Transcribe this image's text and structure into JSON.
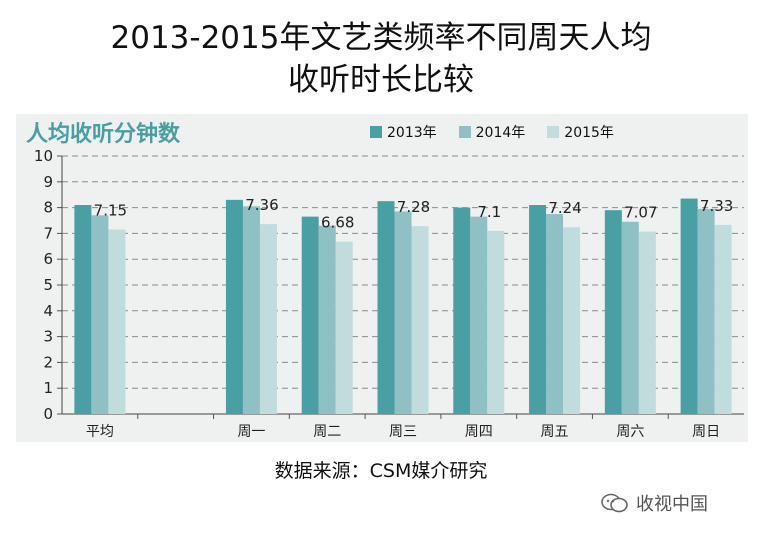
{
  "title_line1": "2013-2015年文艺类频率不同周天人均",
  "title_line2": "收听时长比较",
  "subtitle": "人均收听分钟数",
  "source": "数据来源：CSM媒介研究",
  "watermark": "收视中国",
  "colors": {
    "s2013": "#4a9fa4",
    "s2014": "#8fc0c4",
    "s2015": "#c0dcdd",
    "panel": "#eef1f0",
    "subtitle": "#4a9ea3"
  },
  "chart_data": {
    "type": "bar",
    "title": "人均收听分钟数",
    "categories": [
      "平均",
      "",
      "周一",
      "周二",
      "周三",
      "周四",
      "周五",
      "周六",
      "周日"
    ],
    "series": [
      {
        "name": "2013年",
        "values": [
          8.1,
          null,
          8.3,
          7.65,
          8.25,
          8.0,
          8.1,
          7.9,
          8.35
        ]
      },
      {
        "name": "2014年",
        "values": [
          7.7,
          null,
          8.05,
          7.3,
          7.85,
          7.65,
          7.75,
          7.45,
          7.95
        ]
      },
      {
        "name": "2015年",
        "values": [
          7.15,
          null,
          7.36,
          6.68,
          7.28,
          7.1,
          7.24,
          7.07,
          7.33
        ]
      }
    ],
    "data_labels": [
      "7.15",
      "",
      "7.36",
      "6.68",
      "7.28",
      "7.1",
      "7.24",
      "7.07",
      "7.33"
    ],
    "ylim": [
      0,
      10
    ],
    "yticks": [
      "0",
      "1",
      "2",
      "3",
      "4",
      "5",
      "6",
      "7",
      "8",
      "9",
      "10"
    ],
    "legend_position": "top-right",
    "grid": true
  }
}
